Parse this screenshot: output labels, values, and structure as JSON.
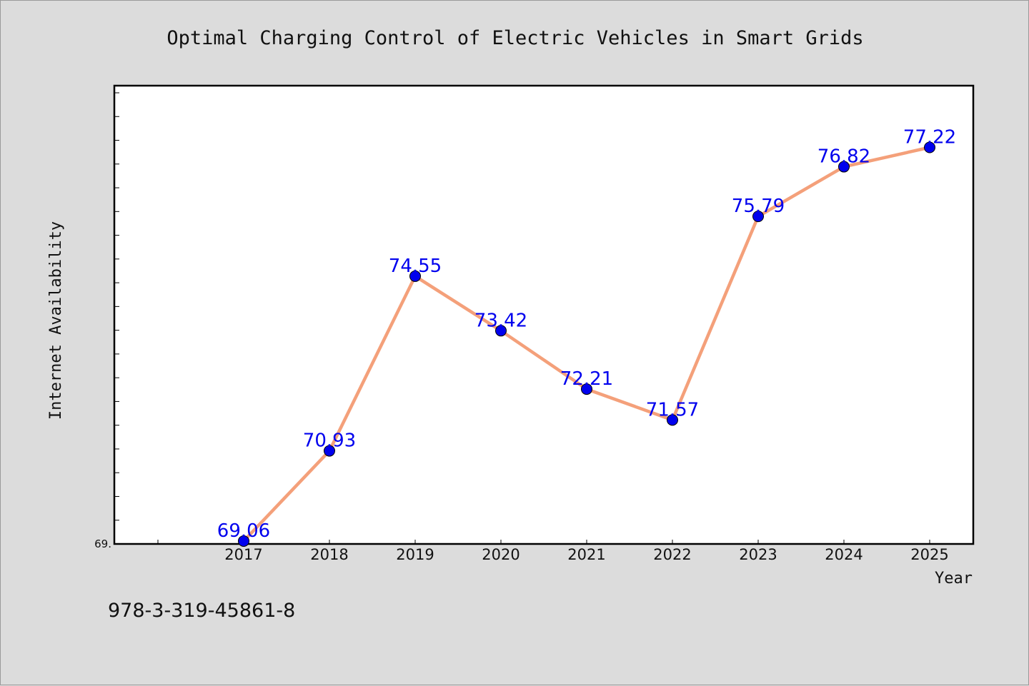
{
  "chart_data": {
    "type": "line",
    "title": "Optimal Charging Control of Electric Vehicles in Smart Grids",
    "xlabel": "Year",
    "ylabel": "Internet Availability",
    "categories": [
      "2017",
      "2018",
      "2019",
      "2020",
      "2021",
      "2022",
      "2023",
      "2024",
      "2025"
    ],
    "series": [
      {
        "values": [
          69.06,
          70.93,
          74.55,
          73.42,
          72.21,
          71.57,
          75.79,
          76.82,
          77.22
        ],
        "labels": [
          "69.06",
          "70.93",
          "74.55",
          "73.42",
          "72.21",
          "71.57",
          "75.79",
          "76.82",
          "77.22"
        ]
      }
    ],
    "ylim": [
      69.0,
      78.5
    ],
    "y_tick_label": "69.",
    "grid": false,
    "line_color": "#f4a07a",
    "marker_color": "#0000ee",
    "label_color": "#0000ee"
  },
  "footnote": "978-3-319-45861-8"
}
